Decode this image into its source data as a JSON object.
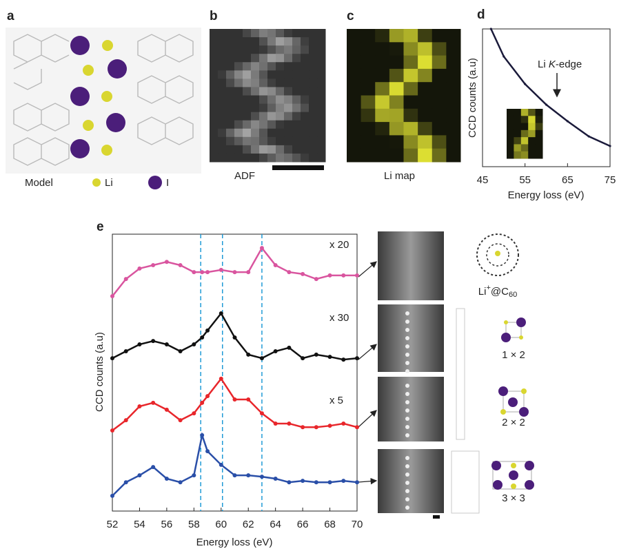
{
  "panels": {
    "a": {
      "label": "a",
      "legend": [
        "Model",
        "Li",
        "I"
      ]
    },
    "b": {
      "label": "b",
      "caption": "ADF"
    },
    "c": {
      "label": "c",
      "caption": "Li map"
    },
    "e_side": {
      "c60": [
        "Li",
        "+",
        "@C",
        "60"
      ],
      "structures": [
        "1 × 2",
        "2 × 2",
        "3 × 3"
      ]
    }
  },
  "chart_data": [
    {
      "type": "line",
      "panel_label": "d",
      "x_label": "Energy loss (eV)",
      "y_label": "CCD counts (a.u)",
      "annotation": [
        "Li ",
        "K",
        "-edge"
      ],
      "x": [
        47,
        50,
        55,
        60,
        65,
        70,
        75
      ],
      "series": [
        {
          "color": "#1a1a3a",
          "values": [
            100,
            80,
            60,
            45,
            33,
            22,
            15
          ]
        }
      ],
      "xlim": [
        45,
        75
      ],
      "ylim": [
        0,
        100
      ],
      "xticks": [
        45,
        55,
        65,
        75
      ]
    },
    {
      "type": "line",
      "panel_label": "e",
      "x_label": "Energy loss (eV)",
      "y_label": "CCD counts (a.u)",
      "x": [
        52,
        53,
        54,
        55,
        56,
        57,
        58,
        58.6,
        59,
        60,
        61,
        62,
        63,
        64,
        65,
        66,
        67,
        68,
        69,
        70
      ],
      "series": [
        {
          "name": "x 20",
          "color": "#d9559f",
          "values": [
            77.6,
            83.8,
            87.6,
            88.8,
            90.0,
            88.8,
            86.3,
            86.3,
            86.3,
            87.1,
            86.3,
            86.3,
            95.0,
            88.8,
            86.3,
            85.6,
            83.8,
            85.1,
            85.1,
            85.1
          ]
        },
        {
          "name": "x 30",
          "color": "#111111",
          "values": [
            55.2,
            57.7,
            60.2,
            61.4,
            60.2,
            57.7,
            60.2,
            62.7,
            65.2,
            71.4,
            62.7,
            56.5,
            55.2,
            57.7,
            59.0,
            55.2,
            56.5,
            55.7,
            54.7,
            55.2
          ]
        },
        {
          "name": "x 5",
          "color": "#e8262b",
          "values": [
            29.1,
            32.8,
            37.8,
            39.1,
            36.6,
            32.8,
            35.3,
            39.1,
            41.5,
            47.8,
            40.3,
            40.3,
            35.3,
            31.6,
            31.6,
            30.3,
            30.3,
            30.8,
            31.6,
            30.3
          ]
        },
        {
          "color": "#2a4fa8",
          "values": [
            5.5,
            10.4,
            12.9,
            15.9,
            11.7,
            10.4,
            12.9,
            27.4,
            21.6,
            16.7,
            12.9,
            12.9,
            12.4,
            11.7,
            10.4,
            10.9,
            10.4,
            10.4,
            10.9,
            10.4
          ]
        }
      ],
      "vlines": [
        58.5,
        60.1,
        63.0
      ],
      "xlim": [
        52,
        70
      ],
      "ylim": [
        0,
        100
      ],
      "xticks": [
        52,
        54,
        56,
        58,
        60,
        62,
        64,
        66,
        68,
        70
      ]
    }
  ]
}
